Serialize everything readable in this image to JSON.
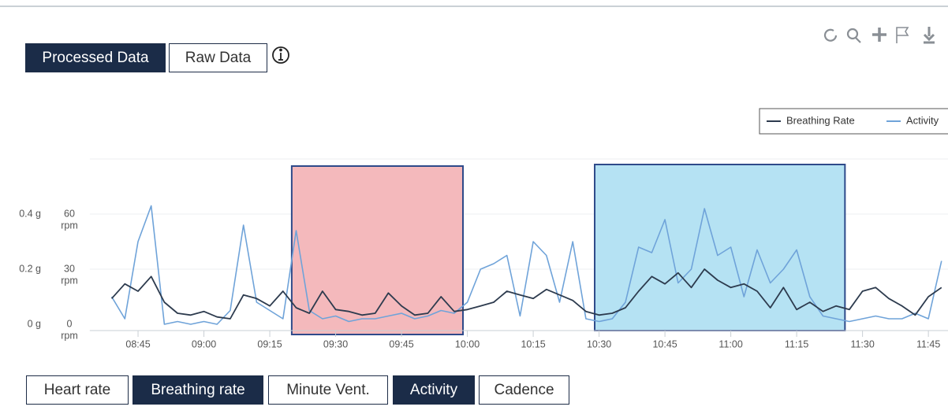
{
  "ui": {
    "tabs": [
      "Processed Data",
      "Raw Data"
    ],
    "active_tab": 0,
    "metrics": [
      "Heart rate",
      "Breathing rate",
      "Minute Vent.",
      "Activity",
      "Cadence"
    ],
    "active_metrics": [
      1,
      3
    ]
  },
  "chart_data": {
    "type": "line",
    "x": [
      "08:39",
      "08:42",
      "08:45",
      "08:48",
      "08:51",
      "08:54",
      "08:57",
      "09:00",
      "09:03",
      "09:06",
      "09:09",
      "09:12",
      "09:15",
      "09:18",
      "09:21",
      "09:24",
      "09:27",
      "09:30",
      "09:33",
      "09:36",
      "09:39",
      "09:42",
      "09:45",
      "09:48",
      "09:51",
      "09:54",
      "09:57",
      "10:00",
      "10:03",
      "10:06",
      "10:09",
      "10:12",
      "10:15",
      "10:18",
      "10:21",
      "10:24",
      "10:27",
      "10:30",
      "10:33",
      "10:36",
      "10:39",
      "10:42",
      "10:45",
      "10:48",
      "10:51",
      "10:54",
      "10:57",
      "11:00",
      "11:03",
      "11:06",
      "11:09",
      "11:12",
      "11:15",
      "11:18",
      "11:21",
      "11:24",
      "11:27",
      "11:30",
      "11:33",
      "11:36",
      "11:39",
      "11:42",
      "11:45",
      "11:48"
    ],
    "xlim": [
      "08:34",
      "11:49"
    ],
    "xticks": [
      "08:45",
      "09:00",
      "09:15",
      "09:30",
      "09:45",
      "10:00",
      "10:15",
      "10:30",
      "10:45",
      "11:00",
      "11:15",
      "11:30",
      "11:45"
    ],
    "ylim": [
      0,
      90
    ],
    "yticks": [
      0,
      30,
      60
    ],
    "y_unit": "rpm",
    "y2lim": [
      0,
      0.6
    ],
    "y2ticks": [
      {
        "value": 0,
        "label": "0 g"
      },
      {
        "value": 0.2,
        "label": "0.2 g"
      },
      {
        "value": 0.4,
        "label": "0.4 g"
      }
    ],
    "grid": true,
    "legend": "top-right",
    "series": [
      {
        "name": "Breathing Rate",
        "color": "#2d3b4e",
        "values": [
          14,
          22,
          18,
          26,
          12,
          6,
          5,
          7,
          4,
          3,
          16,
          14,
          10,
          18,
          9,
          6,
          18,
          8,
          7,
          5,
          6,
          17,
          10,
          5,
          6,
          15,
          7,
          8,
          10,
          12,
          18,
          16,
          14,
          19,
          16,
          13,
          7,
          5,
          6,
          9,
          18,
          26,
          22,
          28,
          20,
          30,
          24,
          20,
          22,
          18,
          9,
          20,
          8,
          12,
          7,
          10,
          8,
          18,
          20,
          14,
          10,
          5,
          15,
          20
        ]
      },
      {
        "name": "Activity",
        "color": "#6fa3d9",
        "axis": "y2",
        "values": [
          0.1,
          0.02,
          0.3,
          0.43,
          0.0,
          0.01,
          0.0,
          0.01,
          0.0,
          0.05,
          0.36,
          0.08,
          0.05,
          0.02,
          0.34,
          0.05,
          0.02,
          0.03,
          0.01,
          0.02,
          0.02,
          0.03,
          0.04,
          0.02,
          0.03,
          0.05,
          0.04,
          0.08,
          0.2,
          0.22,
          0.25,
          0.03,
          0.3,
          0.25,
          0.08,
          0.3,
          0.02,
          0.01,
          0.02,
          0.08,
          0.28,
          0.26,
          0.38,
          0.15,
          0.2,
          0.42,
          0.25,
          0.28,
          0.1,
          0.27,
          0.15,
          0.2,
          0.27,
          0.1,
          0.03,
          0.02,
          0.01,
          0.02,
          0.03,
          0.02,
          0.02,
          0.04,
          0.02,
          0.23
        ]
      }
    ],
    "highlights": [
      {
        "start": "09:20",
        "end": "09:59",
        "color": "#f4b9bc"
      },
      {
        "start": "10:29",
        "end": "11:26",
        "color": "#b5e2f3"
      }
    ]
  }
}
